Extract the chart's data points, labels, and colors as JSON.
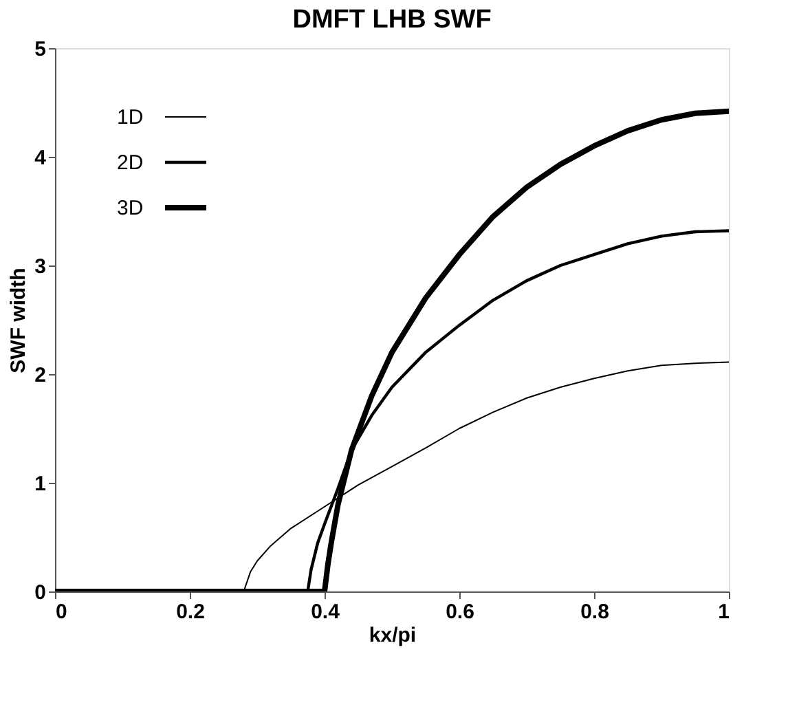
{
  "chart_data": {
    "type": "line",
    "title": "DMFT LHB SWF",
    "xlabel": "kx/pi",
    "ylabel": "SWF width",
    "xlim": [
      0,
      1
    ],
    "ylim": [
      0,
      5
    ],
    "xticks": [
      0,
      0.2,
      0.4,
      0.6,
      0.8,
      1
    ],
    "yticks": [
      0,
      1,
      2,
      3,
      4,
      5
    ],
    "grid": false,
    "legend": "top left",
    "line_style": "solid",
    "marker": "none",
    "series": [
      {
        "name": "1D",
        "color": "#000000",
        "x": [
          0,
          0.28,
          0.29,
          0.3,
          0.32,
          0.35,
          0.4,
          0.45,
          0.5,
          0.55,
          0.6,
          0.65,
          0.7,
          0.75,
          0.8,
          0.85,
          0.9,
          0.95,
          1
        ],
        "values": [
          0,
          0,
          0.18,
          0.28,
          0.42,
          0.58,
          0.78,
          0.98,
          1.15,
          1.32,
          1.5,
          1.65,
          1.78,
          1.88,
          1.96,
          2.03,
          2.08,
          2.1,
          2.11
        ]
      },
      {
        "name": "2D",
        "color": "#000000",
        "x": [
          0,
          0.375,
          0.38,
          0.39,
          0.4,
          0.42,
          0.44,
          0.47,
          0.5,
          0.55,
          0.6,
          0.65,
          0.7,
          0.75,
          0.8,
          0.85,
          0.9,
          0.95,
          1
        ],
        "values": [
          0,
          0,
          0.2,
          0.45,
          0.62,
          0.95,
          1.3,
          1.62,
          1.88,
          2.2,
          2.45,
          2.68,
          2.86,
          3.0,
          3.1,
          3.2,
          3.27,
          3.31,
          3.32
        ]
      },
      {
        "name": "3D",
        "color": "#000000",
        "x": [
          0,
          0.4,
          0.405,
          0.41,
          0.42,
          0.44,
          0.47,
          0.5,
          0.55,
          0.6,
          0.65,
          0.7,
          0.75,
          0.8,
          0.85,
          0.9,
          0.95,
          1
        ],
        "values": [
          0,
          0,
          0.25,
          0.45,
          0.8,
          1.3,
          1.8,
          2.2,
          2.7,
          3.1,
          3.45,
          3.72,
          3.93,
          4.1,
          4.24,
          4.34,
          4.4,
          4.42
        ]
      }
    ]
  }
}
